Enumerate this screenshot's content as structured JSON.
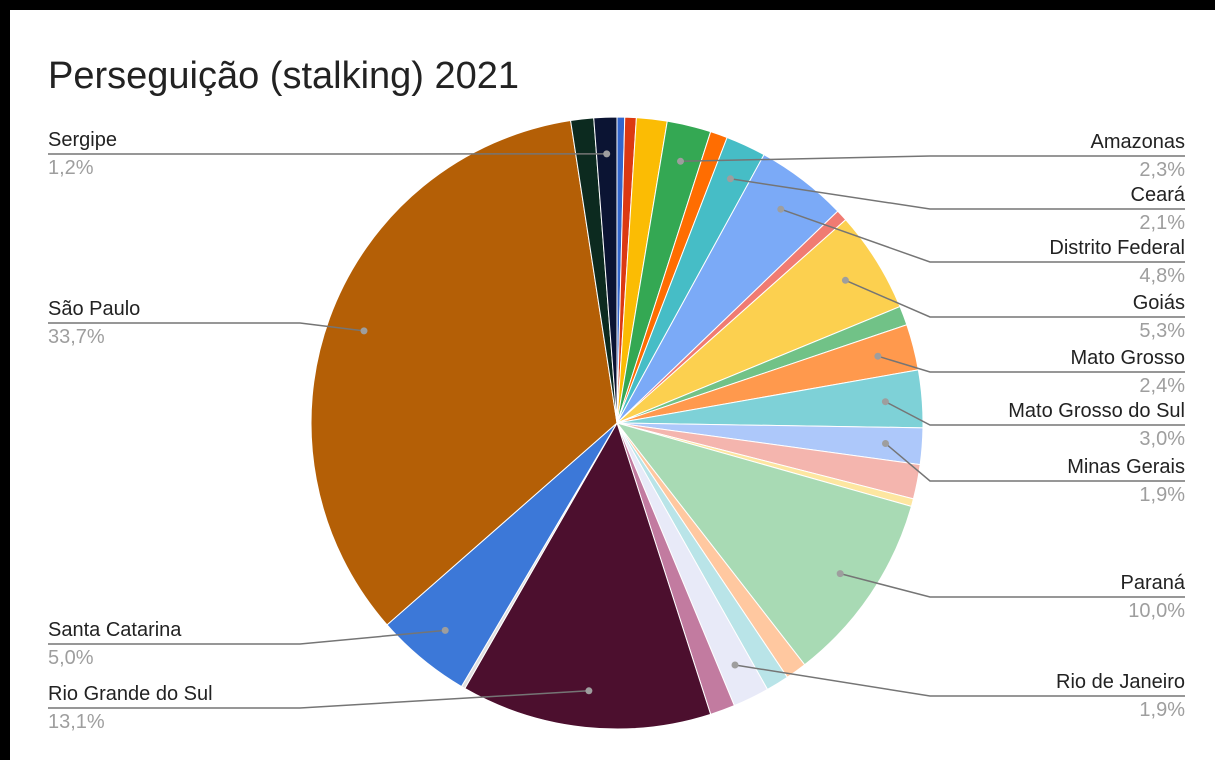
{
  "chart_data": {
    "type": "pie",
    "title": "Perseguição (stalking) 2021",
    "slices": [
      {
        "name": "",
        "value": 0.4,
        "color": "#3366cc"
      },
      {
        "name": "",
        "value": 0.6,
        "color": "#dc3912"
      },
      {
        "name": "",
        "value": 1.6,
        "color": "#fbbc04"
      },
      {
        "name": "Amazonas",
        "value": 2.3,
        "color": "#34a853",
        "label": "2,3%"
      },
      {
        "name": "",
        "value": 0.9,
        "color": "#ff6d01"
      },
      {
        "name": "Ceará",
        "value": 2.1,
        "color": "#46bdc6",
        "label": "2,1%"
      },
      {
        "name": "Distrito Federal",
        "value": 4.8,
        "color": "#7baaf7",
        "label": "4,8%"
      },
      {
        "name": "",
        "value": 0.6,
        "color": "#f07b72"
      },
      {
        "name": "Goiás",
        "value": 5.3,
        "color": "#fcd04f",
        "label": "5,3%"
      },
      {
        "name": "",
        "value": 1.0,
        "color": "#71c287"
      },
      {
        "name": "Mato Grosso",
        "value": 2.4,
        "color": "#ff994d",
        "label": "2,4%"
      },
      {
        "name": "Mato Grosso do Sul",
        "value": 3.0,
        "color": "#7ed1d7",
        "label": "3,0%"
      },
      {
        "name": "Minas Gerais",
        "value": 1.9,
        "color": "#adc8fa",
        "label": "1,9%"
      },
      {
        "name": "",
        "value": 1.8,
        "color": "#f4b5ae"
      },
      {
        "name": "",
        "value": 0.4,
        "color": "#fde6a0"
      },
      {
        "name": "Paraná",
        "value": 10.0,
        "color": "#a8dab4",
        "label": "10,0%"
      },
      {
        "name": "",
        "value": 1.1,
        "color": "#ffc8a0"
      },
      {
        "name": "",
        "value": 1.2,
        "color": "#b9e4e8"
      },
      {
        "name": "Rio de Janeiro",
        "value": 1.9,
        "color": "#e8eaf8",
        "label": "1,9%"
      },
      {
        "name": "",
        "value": 1.3,
        "color": "#c27ba0"
      },
      {
        "name": "Rio Grande do Sul",
        "value": 13.1,
        "color": "#4c0f2e",
        "label": "13,1%"
      },
      {
        "name": "",
        "value": 0.2,
        "color": "#e0e0e0"
      },
      {
        "name": "Santa Catarina",
        "value": 5.0,
        "color": "#3c78d8",
        "label": "5,0%"
      },
      {
        "name": "São Paulo",
        "value": 33.7,
        "color": "#b45f06",
        "label": "33,7%"
      },
      {
        "name": "",
        "value": 1.2,
        "color": "#0c2a1f"
      },
      {
        "name": "Sergipe",
        "value": 1.2,
        "color": "#0b1433",
        "label": "1,2%"
      }
    ],
    "legend_position": "labeled callouts"
  }
}
